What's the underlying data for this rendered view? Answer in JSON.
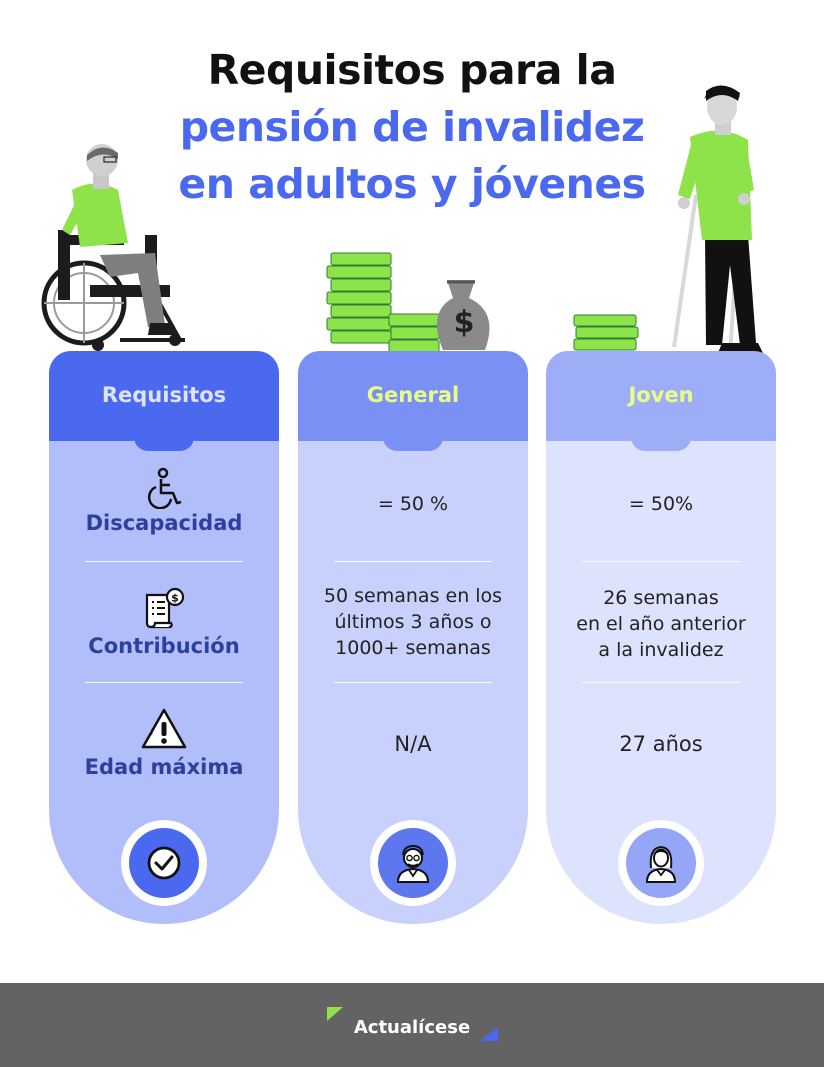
{
  "title": {
    "line1": "Requisitos para la",
    "line2": "pensión de invalidez",
    "line3": "en adultos y jóvenes"
  },
  "columns": {
    "requisitos": {
      "header": "Requisitos",
      "items": [
        "Discapacidad",
        "Contribución",
        "Edad máxima"
      ]
    },
    "general": {
      "header": "General",
      "discapacidad": "= 50 %",
      "contribucion": [
        "50 semanas en los",
        "últimos 3 años o",
        "1000+ semanas"
      ],
      "edad": "N/A"
    },
    "joven": {
      "header": "Joven",
      "discapacidad": "= 50%",
      "contribucion": [
        "26 semanas",
        "en el año anterior",
        "a la invalidez"
      ],
      "edad": "27 años"
    }
  },
  "footer": {
    "brand": "Actualícese"
  },
  "colors": {
    "primary_blue": "#4b69ee",
    "accent_green": "#8fe34a",
    "label_blue": "#2e3f9e",
    "footer_gray": "#636363"
  },
  "icons": [
    "wheelchair-icon",
    "invoice-icon",
    "warning-icon",
    "check-icon",
    "older-person-icon",
    "young-person-icon"
  ]
}
